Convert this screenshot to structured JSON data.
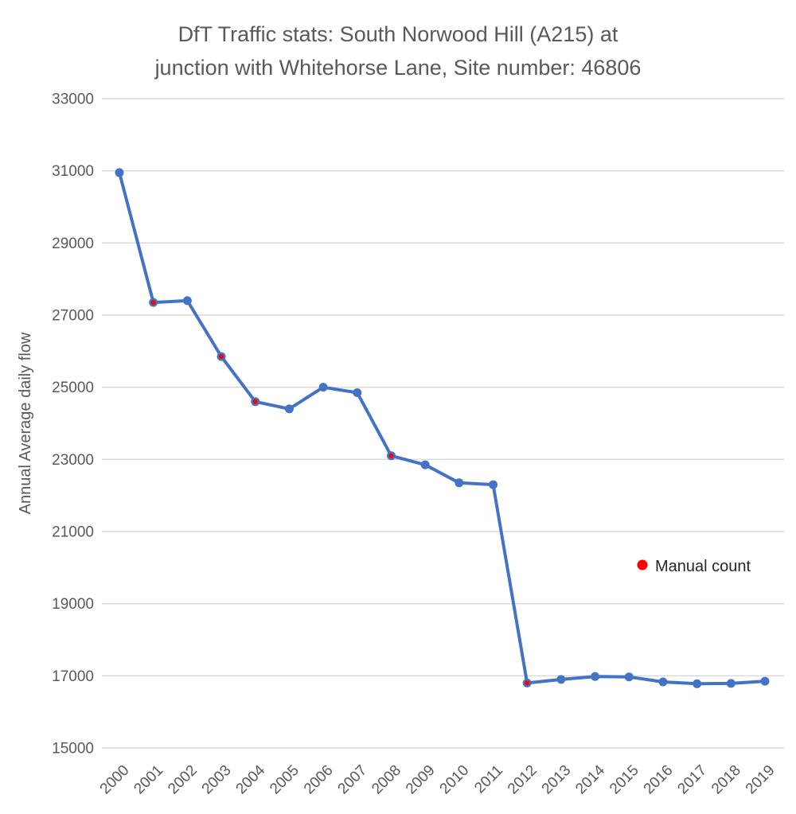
{
  "chart_data": {
    "type": "line",
    "title": "DfT Traffic stats: South Norwood Hill (A215) at junction with Whitehorse Lane, Site number: 46806",
    "title_lines": [
      "DfT Traffic stats: South Norwood Hill (A215) at",
      "junction with Whitehorse Lane, Site number: 46806"
    ],
    "xlabel": "",
    "ylabel": "Annual Average daily flow",
    "ylim": [
      15000,
      33000
    ],
    "ytick_step": 2000,
    "ytick_labels": [
      "15000",
      "17000",
      "19000",
      "21000",
      "23000",
      "25000",
      "27000",
      "29000",
      "31000",
      "33000"
    ],
    "grid": true,
    "legend_position": "middle-right",
    "categories": [
      "2000",
      "2001",
      "2002",
      "2003",
      "2004",
      "2005",
      "2006",
      "2007",
      "2008",
      "2009",
      "2010",
      "2011",
      "2012",
      "2013",
      "2014",
      "2015",
      "2016",
      "2017",
      "2018",
      "2019"
    ],
    "series": [
      {
        "name": "Annual Average daily flow",
        "values": [
          30950,
          27350,
          27400,
          25850,
          24600,
          24400,
          25000,
          24850,
          23100,
          22850,
          22350,
          22300,
          16800,
          16900,
          16980,
          16970,
          16830,
          16780,
          16790,
          16850
        ]
      }
    ],
    "manual_count_years": [
      "2001",
      "2003",
      "2004",
      "2008",
      "2012"
    ],
    "legend": {
      "label": "Manual count",
      "marker": "red-dot"
    },
    "colors": {
      "line": "#4472C4",
      "manual_count": "#FF0000",
      "grid": "#D9D9D9",
      "axis_text": "#595959",
      "legend_text": "#262626"
    }
  }
}
